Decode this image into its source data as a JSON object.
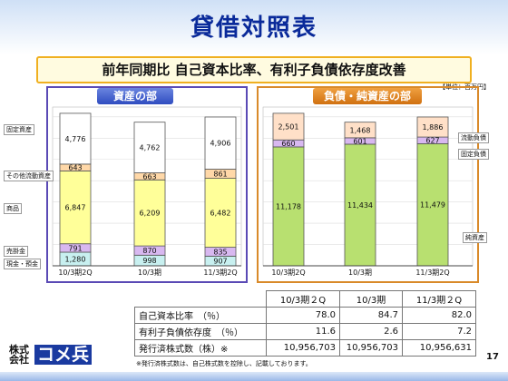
{
  "page": {
    "title": "貸借対照表",
    "subtitle": "前年同期比 自己資本比率、有利子負債依存度改善",
    "unit_note": "【単位：百万円】",
    "left_header": "資産の部",
    "right_header": "負債・純資産の部",
    "page_number": "17",
    "footnote": "※発行済株式数は、自己株式数を控除し、記載しております。",
    "logo_text_top": "株式",
    "logo_text_bottom": "会社",
    "logo_mark": "コメ兵"
  },
  "side_labels": {
    "fixed_assets": "固定資産",
    "other_current": "その他流動資産",
    "goods": "商品",
    "receivables": "売掛金",
    "cash": "現金・預金",
    "current_liab": "流動負債",
    "fixed_liab": "固定負債",
    "net_assets": "純資産"
  },
  "chart_data": [
    {
      "type": "bar",
      "stacked": true,
      "title": "資産の部",
      "categories": [
        "10/3期2Q",
        "10/3期",
        "11/3期2Q"
      ],
      "series": [
        {
          "name": "現金・預金",
          "values": [
            1280,
            998,
            907
          ],
          "color": "#c8f0f0"
        },
        {
          "name": "売掛金",
          "values": [
            791,
            870,
            835
          ],
          "color": "#d8b8f0"
        },
        {
          "name": "商品",
          "values": [
            6847,
            6209,
            6482
          ],
          "color": "#ffff99"
        },
        {
          "name": "その他流動資産",
          "values": [
            643,
            663,
            861
          ],
          "color": "#ffd8a8"
        },
        {
          "name": "固定資産",
          "values": [
            4776,
            4762,
            4906
          ],
          "color": "#ffffff"
        }
      ],
      "grid": true
    },
    {
      "type": "bar",
      "stacked": true,
      "title": "負債・純資産の部",
      "categories": [
        "10/3期2Q",
        "10/3期",
        "11/3期2Q"
      ],
      "series": [
        {
          "name": "純資産",
          "values": [
            11178,
            11434,
            11479
          ],
          "color": "#b8e070"
        },
        {
          "name": "固定負債",
          "values": [
            660,
            601,
            627
          ],
          "color": "#d8b8f0"
        },
        {
          "name": "流動負債",
          "values": [
            2501,
            1468,
            1886
          ],
          "color": "#ffe0c8"
        }
      ],
      "grid": true
    }
  ],
  "metrics_table": {
    "headers": [
      "",
      "10/3期２Q",
      "10/3期",
      "11/3期２Q"
    ],
    "rows": [
      {
        "label": "自己資本比率　（％）",
        "values": [
          "78.0",
          "84.7",
          "82.0"
        ]
      },
      {
        "label": "有利子負債依存度　（％）",
        "values": [
          "11.6",
          "2.6",
          "7.2"
        ]
      },
      {
        "label": "発行済株式数（株）※",
        "values": [
          "10,956,703",
          "10,956,703",
          "10,956,631"
        ]
      }
    ]
  }
}
